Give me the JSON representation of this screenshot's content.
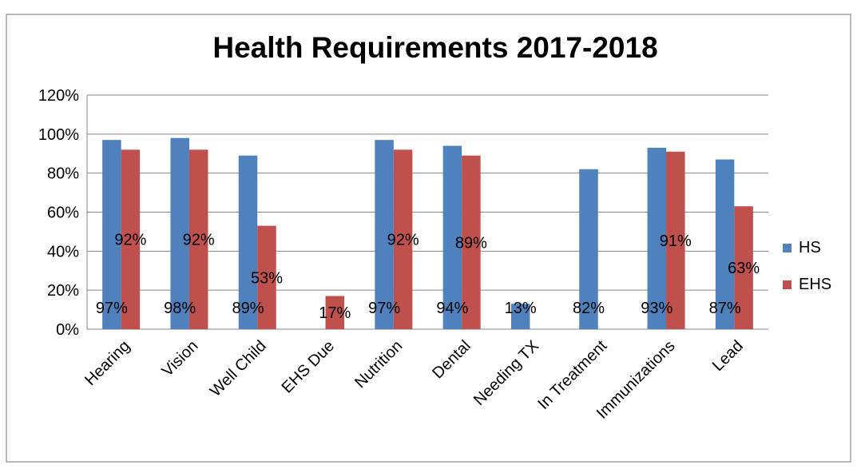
{
  "chart_data": {
    "type": "bar",
    "title": "Health Requirements 2017-2018",
    "categories": [
      "Hearing",
      "Vision",
      "Well Child",
      "EHS Due",
      "Nutrition",
      "Dental",
      "Needing TX",
      "In Treatment",
      "Immunizations",
      "Lead"
    ],
    "series": [
      {
        "name": "HS",
        "color": "#4F81BD",
        "values": [
          97,
          98,
          89,
          null,
          97,
          94,
          13,
          82,
          93,
          87
        ],
        "labels": [
          "97%",
          "98%",
          "89%",
          "",
          "97%",
          "94%",
          "13%",
          "82%",
          "93%",
          "87%"
        ]
      },
      {
        "name": "EHS",
        "color": "#C0504D",
        "values": [
          92,
          92,
          53,
          17,
          92,
          89,
          null,
          null,
          91,
          63
        ],
        "labels": [
          "92%",
          "92%",
          "53%",
          "17%",
          "92%",
          "89%",
          "",
          "",
          "91%",
          "63%"
        ]
      }
    ],
    "yticks": [
      "0%",
      "20%",
      "40%",
      "60%",
      "80%",
      "100%",
      "120%"
    ],
    "ylim": [
      0,
      120
    ],
    "ytick_step": 20,
    "grid": true,
    "legend_position": "right"
  }
}
